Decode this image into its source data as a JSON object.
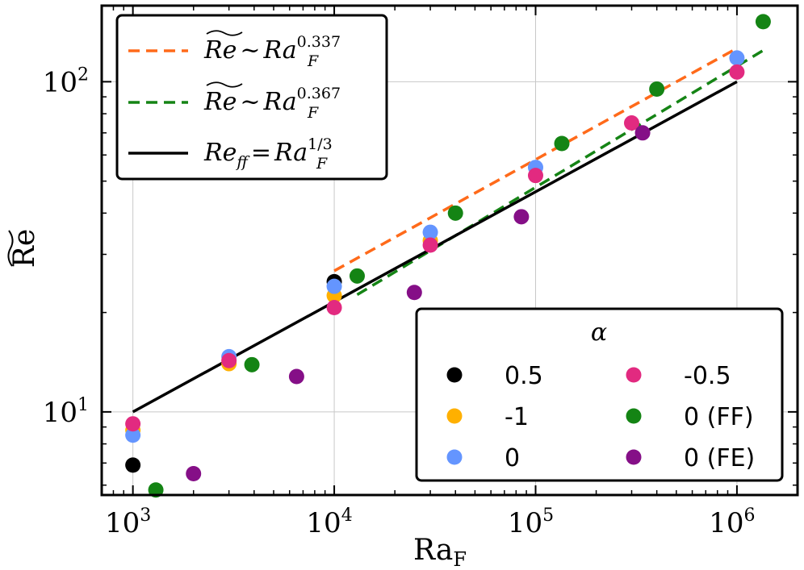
{
  "chart_data": {
    "type": "scatter",
    "title": "",
    "xscale": "log",
    "yscale": "log",
    "xlim": [
      700,
      2000000
    ],
    "ylim": [
      5.6,
      170
    ],
    "grid": true,
    "xlabel": {
      "base": "Ra",
      "sub": "F"
    },
    "ylabel": "Re",
    "xticks": [
      {
        "value": 1000,
        "base": "10",
        "exp": "3"
      },
      {
        "value": 10000,
        "base": "10",
        "exp": "4"
      },
      {
        "value": 100000,
        "base": "10",
        "exp": "5"
      },
      {
        "value": 1000000,
        "base": "10",
        "exp": "6"
      }
    ],
    "yticks": [
      {
        "value": 10,
        "base": "10",
        "exp": "1"
      },
      {
        "value": 100,
        "base": "10",
        "exp": "2"
      }
    ],
    "fit_lines": [
      {
        "name": "fit-0.337",
        "color": "#ff6a1a",
        "dash": true,
        "prefactor": 1.2,
        "exponent": 0.337,
        "xrange": [
          10000,
          1000000
        ],
        "label": {
          "lhs": "Re",
          "rel": "~",
          "base": "Ra",
          "sub": "F",
          "sup": "0.337"
        }
      },
      {
        "name": "fit-0.367",
        "color": "#158415",
        "dash": true,
        "prefactor": 0.7,
        "exponent": 0.367,
        "xrange": [
          13000,
          1350000
        ],
        "label": {
          "lhs": "Re",
          "rel": "~",
          "base": "Ra",
          "sub": "F",
          "sup": "0.367"
        }
      },
      {
        "name": "free-fall",
        "color": "#000000",
        "dash": false,
        "prefactor": 1.0,
        "exponent": 0.3333333,
        "xrange": [
          1000,
          1000000
        ],
        "label": {
          "lhs": "Re",
          "lhs_sub": "ff",
          "rel": "=",
          "base": "Ra",
          "sub": "F",
          "sup": "1/3"
        }
      }
    ],
    "series": [
      {
        "name": "0.5",
        "color": "#000000",
        "points": [
          [
            1000,
            6.9
          ],
          [
            10000,
            24.8
          ]
        ]
      },
      {
        "name": "-1",
        "color": "#ffb000",
        "points": [
          [
            1000,
            8.8
          ],
          [
            3000,
            14.0
          ],
          [
            10000,
            22.5
          ],
          [
            30000,
            33.0
          ]
        ]
      },
      {
        "name": "0",
        "color": "#6495ff",
        "points": [
          [
            1000,
            8.5
          ],
          [
            3000,
            14.7
          ],
          [
            10000,
            24.0
          ],
          [
            30000,
            35.0
          ],
          [
            100000,
            55.0
          ],
          [
            1000000,
            118.0
          ]
        ]
      },
      {
        "name": "-0.5",
        "color": "#e22a80",
        "points": [
          [
            1000,
            9.2
          ],
          [
            3000,
            14.3
          ],
          [
            10000,
            20.7
          ],
          [
            30000,
            32.0
          ],
          [
            100000,
            52.0
          ],
          [
            300000,
            75.0
          ],
          [
            1000000,
            107.0
          ]
        ]
      },
      {
        "name": "0 (FF)",
        "color": "#148414",
        "points": [
          [
            1300,
            5.8
          ],
          [
            3900,
            13.9
          ],
          [
            13000,
            25.8
          ],
          [
            40000,
            40.0
          ],
          [
            135000,
            65.0
          ],
          [
            400000,
            95.0
          ],
          [
            1350000,
            152.0
          ]
        ]
      },
      {
        "name": "0 (FE)",
        "color": "#850f87",
        "points": [
          [
            2000,
            6.5
          ],
          [
            6500,
            12.8
          ],
          [
            25000,
            23.0
          ],
          [
            85000,
            39.0
          ],
          [
            340000,
            70.0
          ]
        ]
      }
    ],
    "legend_lines_placement": "top-left",
    "legend_markers": {
      "title": "α",
      "placement": "bottom-right",
      "columns": 2,
      "order": [
        "0.5",
        "-0.5",
        "-1",
        "0 (FF)",
        "0",
        "0 (FE)"
      ]
    }
  }
}
